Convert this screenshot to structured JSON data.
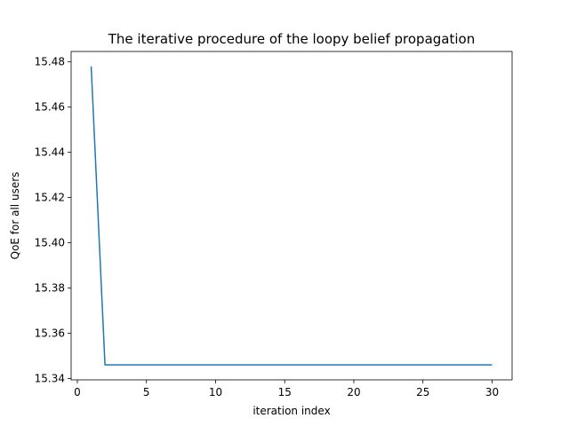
{
  "chart_data": {
    "type": "line",
    "title": "The iterative procedure of the loopy belief propagation",
    "xlabel": "iteration index",
    "ylabel": "QoE for all users",
    "xlim": [
      -0.45,
      31.45
    ],
    "ylim": [
      15.3394,
      15.4846
    ],
    "xticks": [
      0,
      5,
      10,
      15,
      20,
      25,
      30
    ],
    "xtick_labels": [
      "0",
      "5",
      "10",
      "15",
      "20",
      "25",
      "30"
    ],
    "yticks": [
      15.34,
      15.36,
      15.38,
      15.4,
      15.42,
      15.44,
      15.46,
      15.48
    ],
    "ytick_labels": [
      "15.34",
      "15.36",
      "15.38",
      "15.40",
      "15.42",
      "15.44",
      "15.46",
      "15.48"
    ],
    "grid": false,
    "series": [
      {
        "color": "#1f77b4",
        "x": [
          1,
          2,
          3,
          4,
          5,
          6,
          7,
          8,
          9,
          10,
          11,
          12,
          13,
          14,
          15,
          16,
          17,
          18,
          19,
          20,
          21,
          22,
          23,
          24,
          25,
          26,
          27,
          28,
          29,
          30
        ],
        "values": [
          15.478,
          15.346,
          15.346,
          15.346,
          15.346,
          15.346,
          15.346,
          15.346,
          15.346,
          15.346,
          15.346,
          15.346,
          15.346,
          15.346,
          15.346,
          15.346,
          15.346,
          15.346,
          15.346,
          15.346,
          15.346,
          15.346,
          15.346,
          15.346,
          15.346,
          15.346,
          15.346,
          15.346,
          15.346,
          15.346
        ]
      }
    ]
  }
}
